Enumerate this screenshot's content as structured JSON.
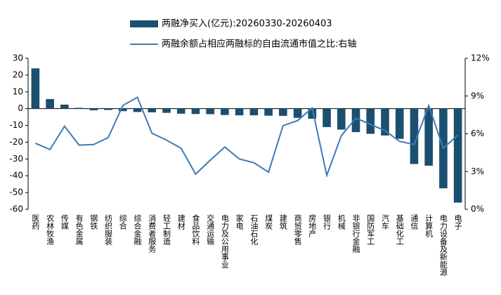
{
  "chart_data": {
    "type": "bar_line",
    "categories": [
      "医药",
      "农林牧渔",
      "传媒",
      "有色金属",
      "钢铁",
      "纺织服装",
      "综合",
      "综合金融",
      "消费者服务",
      "轻工制造",
      "建材",
      "食品饮料",
      "交通运输",
      "电力及公用事业",
      "家电",
      "石油石化",
      "煤炭",
      "建筑",
      "商贸零售",
      "房地产",
      "银行",
      "机械",
      "非银行金融",
      "国防军工",
      "汽车",
      "基础化工",
      "通信",
      "计算机",
      "电力设备及新能源",
      "电子"
    ],
    "series": [
      {
        "name": "两融净买入(亿元):20260330-20260403",
        "type": "bar",
        "color": "#1b4f6f",
        "values": [
          24,
          5.7,
          2.4,
          0.5,
          -1,
          -0.8,
          -1.5,
          -2,
          -2.2,
          -2.5,
          -3,
          -3.2,
          -3.3,
          -3.8,
          -4,
          -4,
          -4.2,
          -4.3,
          -5.5,
          -6,
          -11,
          -12.5,
          -14,
          -15,
          -16,
          -18,
          -33,
          -34,
          -47.5,
          -56
        ]
      },
      {
        "name": "两融余额占相应两融标的自由流通市值之比:右轴",
        "type": "line",
        "axis": "y2",
        "color": "#3d7ab8",
        "values": [
          5.25,
          4.75,
          6.6,
          5.1,
          5.15,
          5.7,
          8.25,
          8.9,
          6.05,
          5.5,
          4.85,
          2.8,
          3.9,
          4.95,
          4.0,
          3.7,
          2.95,
          6.65,
          7.05,
          8.05,
          2.7,
          5.85,
          7.25,
          6.75,
          6.25,
          5.4,
          5.15,
          8.25,
          4.85,
          5.9
        ]
      }
    ],
    "ylim": [
      -60,
      30
    ],
    "yticks": [
      -60,
      -50,
      -40,
      -30,
      -20,
      -10,
      0,
      10,
      20,
      30
    ],
    "y2lim": [
      0,
      12
    ],
    "y2ticks": [
      {
        "value": 0,
        "label": "0%"
      },
      {
        "value": 3,
        "label": "3%"
      },
      {
        "value": 6,
        "label": "6%"
      },
      {
        "value": 9,
        "label": "9%"
      },
      {
        "value": 12,
        "label": "12%"
      }
    ],
    "legend": "top"
  }
}
